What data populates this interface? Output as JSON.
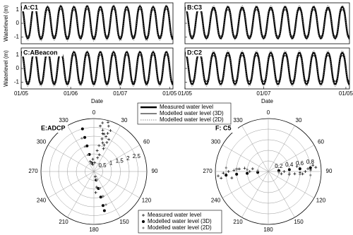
{
  "chart_data": [
    {
      "type": "line",
      "title": "A:C1",
      "ylabel": "Waterlevel (m)",
      "x": [
        0,
        1,
        2,
        3,
        4,
        5,
        6,
        7,
        8,
        9,
        10,
        11,
        12,
        13,
        14,
        15,
        16,
        17,
        18,
        19,
        20,
        21,
        22,
        23
      ],
      "xlim": [
        0,
        23
      ],
      "ylim": [
        -1.5,
        1.5
      ],
      "yticks": [
        -1,
        0,
        1
      ],
      "series": [
        {
          "name": "Measured water level",
          "color": "#000000",
          "values": [
            1.2,
            -1.1,
            1.25,
            -1.15,
            1.2,
            -1.1,
            1.25,
            -1.15,
            1.2,
            -1.1,
            1.25,
            -1.15,
            1.2,
            -1.1,
            1.25,
            -1.15,
            1.2,
            -1.1,
            1.25,
            -1.15,
            1.2,
            -1.1,
            1.25,
            -1.15
          ]
        },
        {
          "name": "Modelled water level (3D)",
          "color": "#000000",
          "values": [
            1.0,
            -0.95,
            1.05,
            -1.0,
            1.0,
            -0.95,
            1.05,
            -1.0,
            1.0,
            -0.95,
            1.05,
            -1.0,
            1.0,
            -0.95,
            1.05,
            -1.0,
            1.0,
            -0.95,
            1.05,
            -1.0,
            1.0,
            -0.95,
            1.05,
            -1.0
          ]
        },
        {
          "name": "Modelled water level (2D)",
          "color": "#666666",
          "values": [
            1.3,
            -1.25,
            1.35,
            -1.3,
            1.3,
            -1.25,
            1.35,
            -1.3,
            1.3,
            -1.25,
            1.35,
            -1.3,
            1.3,
            -1.25,
            1.35,
            -1.3,
            1.3,
            -1.25,
            1.35,
            -1.3,
            1.3,
            -1.25,
            1.35,
            -1.3
          ]
        }
      ]
    },
    {
      "type": "line",
      "title": "B:C3",
      "x": [
        0,
        1,
        2,
        3,
        4,
        5,
        6,
        7,
        8,
        9,
        10,
        11,
        12,
        13,
        14,
        15,
        16,
        17,
        18,
        19,
        20,
        21,
        22,
        23
      ],
      "xlim": [
        0,
        23
      ],
      "ylim": [
        -1.5,
        1.5
      ],
      "yticks": [
        -1,
        0,
        1
      ],
      "series": [
        {
          "color": "#000000",
          "values": [
            1.15,
            -1.1,
            1.2,
            -1.1,
            1.15,
            -1.1,
            1.2,
            -1.1,
            1.15,
            -1.1,
            1.2,
            -1.1,
            1.15,
            -1.1,
            1.2,
            -1.1,
            1.15,
            -1.1,
            1.2,
            -1.1,
            1.15,
            -1.1,
            1.2,
            -1.1
          ]
        },
        {
          "color": "#000000",
          "values": [
            1.0,
            -0.95,
            1.0,
            -0.95,
            1.0,
            -0.95,
            1.0,
            -0.95,
            1.0,
            -0.95,
            1.0,
            -0.95,
            1.0,
            -0.95,
            1.0,
            -0.95,
            1.0,
            -0.95,
            1.0,
            -0.95,
            1.0,
            -0.95,
            1.0,
            -0.95
          ]
        },
        {
          "color": "#666666",
          "values": [
            1.3,
            -1.2,
            1.3,
            -1.2,
            1.3,
            -1.2,
            1.3,
            -1.2,
            1.3,
            -1.2,
            1.3,
            -1.2,
            1.3,
            -1.2,
            1.3,
            -1.2,
            1.3,
            -1.2,
            1.3,
            -1.2,
            1.3,
            -1.2,
            1.3,
            -1.2
          ]
        }
      ]
    },
    {
      "type": "line",
      "title": "C:ABeacon",
      "ylabel": "Waterlevel (m)",
      "xlabel": "Date",
      "x": [
        0,
        1,
        2,
        3,
        4,
        5,
        6,
        7,
        8,
        9,
        10,
        11,
        12,
        13,
        14,
        15,
        16,
        17,
        18,
        19,
        20,
        21,
        22,
        23
      ],
      "xlim": [
        0,
        23
      ],
      "ylim": [
        -1.5,
        1.5
      ],
      "yticks": [
        -1,
        0,
        1
      ],
      "xticks": [
        {
          "value": 0,
          "label": "01/05"
        },
        {
          "value": 7.5,
          "label": "01/06"
        },
        {
          "value": 15,
          "label": "01/07"
        },
        {
          "value": 22.5,
          "label": "01/05"
        }
      ],
      "series": [
        {
          "color": "#000000",
          "values": [
            1.2,
            -1.15,
            1.2,
            -1.15,
            1.2,
            -1.15,
            1.2,
            -1.15,
            1.2,
            -1.15,
            1.2,
            -1.15,
            1.2,
            -1.15,
            1.2,
            -1.15,
            1.2,
            -1.15,
            1.2,
            -1.15,
            1.2,
            -1.15,
            1.2,
            -1.15
          ]
        },
        {
          "color": "#000000",
          "values": [
            1.0,
            -1.0,
            1.0,
            -1.0,
            1.0,
            -1.0,
            1.0,
            -1.0,
            1.0,
            -1.0,
            1.0,
            -1.0,
            1.0,
            -1.0,
            1.0,
            -1.0,
            1.0,
            -1.0,
            1.0,
            -1.0,
            1.0,
            -1.0,
            1.0,
            -1.0
          ]
        },
        {
          "color": "#666666",
          "values": [
            1.3,
            -1.3,
            1.3,
            -1.3,
            1.3,
            -1.3,
            1.3,
            -1.3,
            1.3,
            -1.3,
            1.3,
            -1.3,
            1.3,
            -1.3,
            1.3,
            -1.3,
            1.3,
            -1.3,
            1.3,
            -1.3,
            1.3,
            -1.3,
            1.3,
            -1.3
          ]
        }
      ]
    },
    {
      "type": "line",
      "title": "D:C2",
      "xlabel": "Date",
      "x": [
        0,
        1,
        2,
        3,
        4,
        5,
        6,
        7,
        8,
        9,
        10,
        11,
        12,
        13,
        14,
        15,
        16,
        17,
        18,
        19,
        20,
        21,
        22,
        23
      ],
      "xlim": [
        0,
        23
      ],
      "ylim": [
        -1.5,
        1.5
      ],
      "yticks": [
        -1,
        0,
        1
      ],
      "xticks": [
        {
          "value": 0,
          "label": "01/05"
        },
        {
          "value": 11,
          "label": "01/07"
        },
        {
          "value": 22.5,
          "label": "01/05"
        }
      ],
      "series": [
        {
          "color": "#000000",
          "values": [
            1.15,
            -1.15,
            1.15,
            -1.15,
            1.15,
            -1.15,
            1.15,
            -1.15,
            1.15,
            -1.15,
            1.15,
            -1.15,
            1.15,
            -1.15,
            1.15,
            -1.15,
            1.15,
            -1.15,
            1.15,
            -1.15,
            1.15,
            -1.15,
            1.15,
            -1.15
          ]
        },
        {
          "color": "#000000",
          "values": [
            0.95,
            -0.95,
            0.95,
            -0.95,
            0.95,
            -0.95,
            0.95,
            -0.95,
            0.95,
            -0.95,
            0.95,
            -0.95,
            0.95,
            -0.95,
            0.95,
            -0.95,
            0.95,
            -0.95,
            0.95,
            -0.95,
            0.95,
            -0.95,
            0.95,
            -0.95
          ]
        },
        {
          "color": "#666666",
          "values": [
            1.3,
            -1.3,
            1.3,
            -1.3,
            1.3,
            -1.3,
            1.3,
            -1.3,
            1.3,
            -1.3,
            1.3,
            -1.3,
            1.3,
            -1.3,
            1.3,
            -1.3,
            1.3,
            -1.3,
            1.3,
            -1.3,
            1.3,
            -1.3,
            1.3,
            -1.3
          ]
        }
      ]
    },
    {
      "type": "polar",
      "title": "E:ADCP",
      "rlim": [
        0,
        3
      ],
      "rticks": [
        0.5,
        1,
        1.5,
        2,
        2.5
      ],
      "thetaticks": [
        0,
        30,
        60,
        90,
        120,
        150,
        180,
        210,
        240,
        270,
        300,
        330
      ],
      "series": [
        {
          "name": "Measured water level",
          "color": "#000000",
          "angle": [
            8,
            12,
            15,
            18,
            20,
            22,
            25,
            14,
            10,
            17,
            21,
            19,
            16,
            13,
            24,
            11,
            9,
            23,
            18,
            15,
            340,
            350,
            355,
            5,
            170,
            175,
            160,
            165
          ],
          "r": [
            2.6,
            2.4,
            2.2,
            2.7,
            2.3,
            2.5,
            2.0,
            1.9,
            2.8,
            1.7,
            1.6,
            2.1,
            2.9,
            2.2,
            1.8,
            1.5,
            1.2,
            1.4,
            1.0,
            0.8,
            0.6,
            0.4,
            0.7,
            0.5,
            0.9,
            1.2,
            1.5,
            0.3
          ]
        },
        {
          "name": "Modelled water level (3D)",
          "color": "#000000",
          "angle": [
            345,
            345,
            345,
            345,
            345,
            165,
            165,
            165,
            165,
            165
          ],
          "r": [
            0.5,
            1,
            1.5,
            2,
            2.5,
            0.5,
            1,
            1.5,
            2,
            2.3
          ]
        },
        {
          "name": "Modelled water level (2D)",
          "color": "#888888",
          "angle": [
            340,
            340,
            340,
            340,
            160,
            160,
            160,
            160
          ],
          "r": [
            0.5,
            1,
            1.5,
            2,
            0.5,
            1,
            1.5,
            2
          ]
        }
      ]
    },
    {
      "type": "polar",
      "title": "F: C5",
      "rlim": [
        0,
        1
      ],
      "rticks": [
        0.2,
        0.4,
        0.6,
        0.8
      ],
      "thetaticks": [
        0,
        30,
        60,
        90,
        120,
        150,
        180,
        210,
        240,
        270,
        300,
        330
      ],
      "series": [
        {
          "color": "#000000",
          "angle": [
            265,
            268,
            270,
            272,
            275,
            262,
            278,
            270,
            266,
            274,
            280,
            260,
            85,
            88,
            90,
            92,
            95,
            82,
            98,
            90,
            86,
            94,
            100,
            80
          ],
          "r": [
            0.95,
            0.85,
            0.75,
            0.65,
            0.55,
            0.9,
            0.45,
            0.35,
            0.8,
            0.6,
            0.3,
            0.7,
            0.9,
            0.8,
            0.7,
            0.6,
            0.5,
            0.85,
            0.4,
            0.3,
            0.75,
            0.65,
            0.25,
            0.55
          ]
        },
        {
          "color": "#000000",
          "angle": [
            265,
            265,
            265,
            265,
            85,
            85,
            85,
            85
          ],
          "r": [
            0.2,
            0.4,
            0.6,
            0.8,
            0.2,
            0.4,
            0.6,
            0.8
          ]
        },
        {
          "color": "#888888",
          "angle": [
            275,
            275,
            275,
            275,
            95,
            95,
            95,
            95
          ],
          "r": [
            0.2,
            0.4,
            0.6,
            0.8,
            0.2,
            0.4,
            0.6,
            0.8
          ]
        }
      ]
    }
  ]
}
